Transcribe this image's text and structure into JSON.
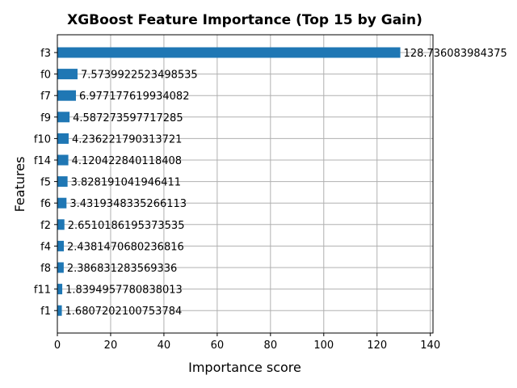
{
  "chart_data": {
    "type": "bar",
    "orientation": "horizontal",
    "title": "XGBoost Feature Importance (Top 15 by Gain)",
    "xlabel": "Importance score",
    "ylabel": "Features",
    "xlim": [
      0,
      141
    ],
    "xticks": [
      0,
      20,
      40,
      60,
      80,
      100,
      120,
      140
    ],
    "grid": true,
    "bar_color": "#1f77b4",
    "categories": [
      "f3",
      "f0",
      "f7",
      "f9",
      "f10",
      "f14",
      "f5",
      "f6",
      "f2",
      "f4",
      "f8",
      "f11",
      "f1"
    ],
    "values": [
      128.736083984375,
      7.5739922523498535,
      6.977177619934082,
      4.587273597717285,
      4.236221790313721,
      4.120422840118408,
      3.828191041946411,
      3.4319348335266113,
      2.6510186195373535,
      2.4381470680236816,
      2.386831283569336,
      1.8394957780838013,
      1.6807202100753784
    ],
    "value_labels": [
      "128.736083984375",
      "7.5739922523498535",
      "6.977177619934082",
      "4.587273597717285",
      "4.236221790313721",
      "4.120422840118408",
      "3.828191041946411",
      "3.4319348335266113",
      "2.6510186195373535",
      "2.4381470680236816",
      "2.386831283569336",
      "1.8394957780838013",
      "1.6807202100753784"
    ]
  }
}
